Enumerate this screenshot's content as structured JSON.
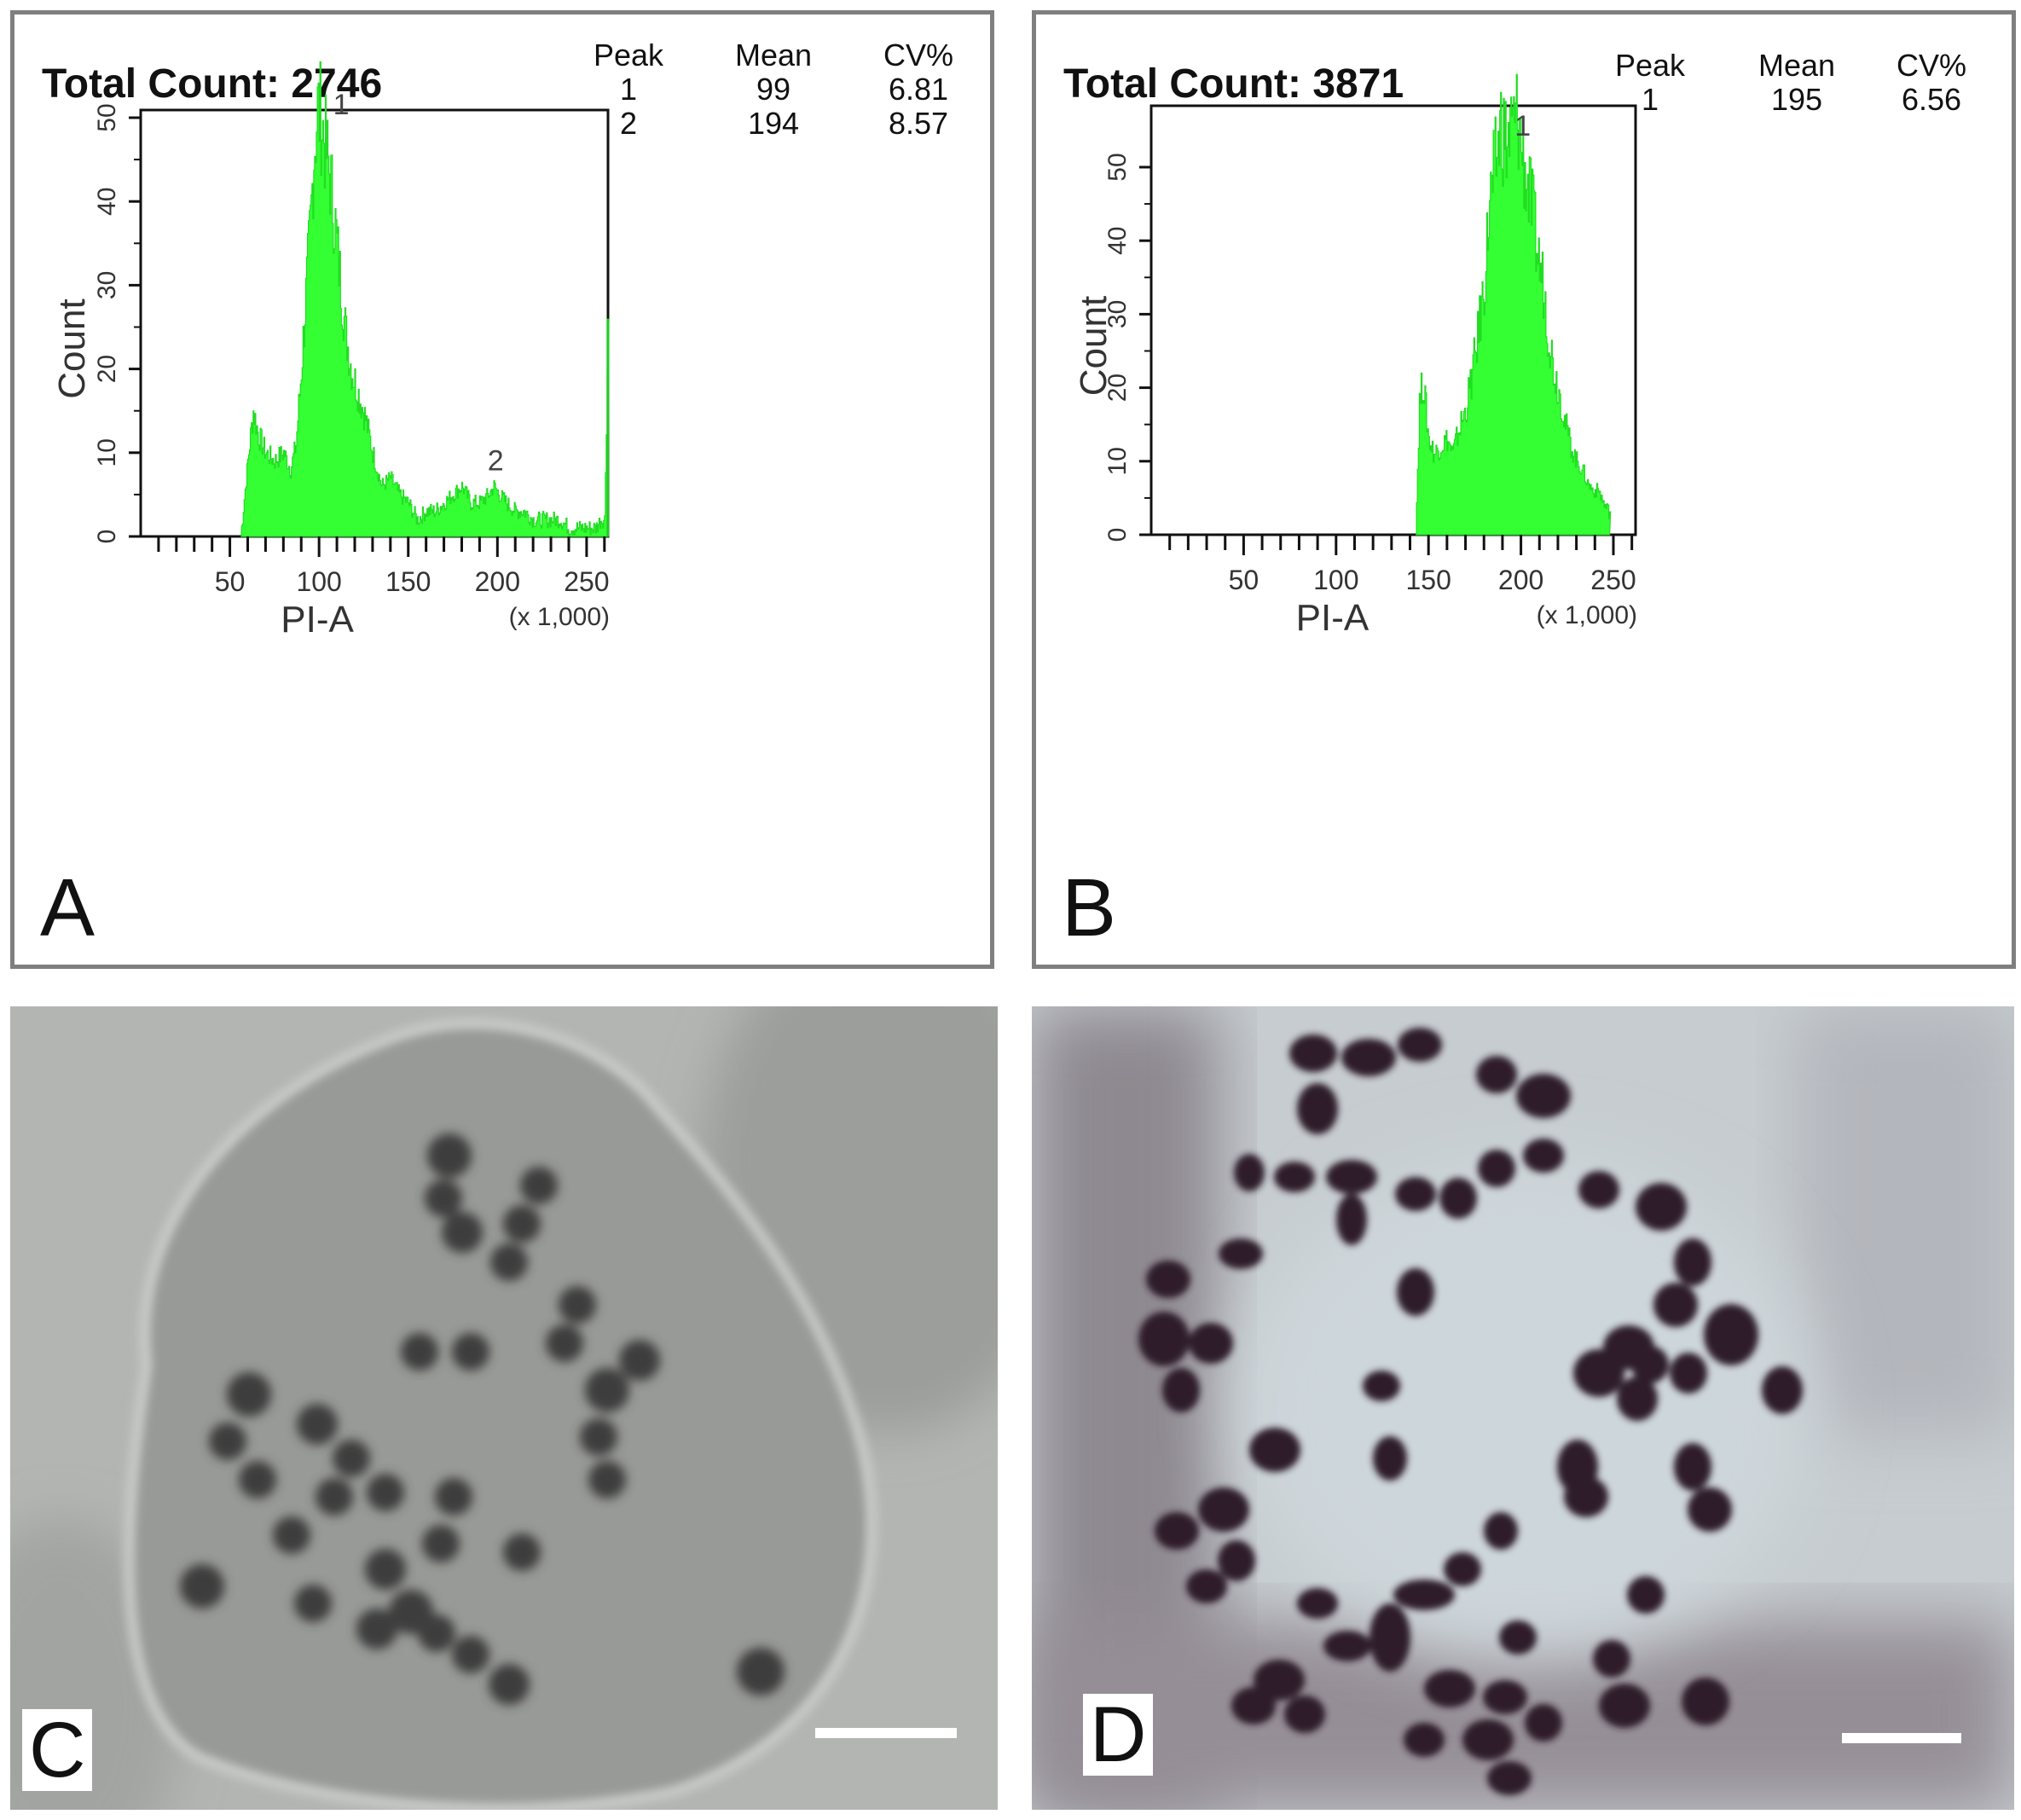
{
  "panels": [
    {
      "letter": "A",
      "total_count": "Total Count: 2746",
      "stats": {
        "headers": [
          "Peak",
          "Mean",
          "CV%"
        ],
        "rows": [
          [
            "1",
            "99",
            "6.81"
          ],
          [
            "2",
            "194",
            "8.57"
          ]
        ]
      },
      "ylabel": "Count",
      "xlabel": "PI-A",
      "x_unit": "(x 1,000)",
      "yticks": [
        "0",
        "10",
        "20",
        "30",
        "40",
        "50"
      ],
      "xticks": [
        "50",
        "100",
        "150",
        "200",
        "250"
      ],
      "peak_labels": [
        "1",
        "2"
      ]
    },
    {
      "letter": "B",
      "total_count": "Total Count: 3871",
      "stats": {
        "headers": [
          "Peak",
          "Mean",
          "CV%"
        ],
        "rows": [
          [
            "1",
            "195",
            "6.56"
          ]
        ]
      },
      "ylabel": "Count",
      "xlabel": "PI-A",
      "x_unit": "(x 1,000)",
      "yticks": [
        "0",
        "10",
        "20",
        "30",
        "40",
        "50"
      ],
      "xticks": [
        "50",
        "100",
        "150",
        "200",
        "250"
      ],
      "peak_labels": [
        "1"
      ]
    }
  ],
  "photos": [
    {
      "letter": "C"
    },
    {
      "letter": "D"
    }
  ],
  "colors": {
    "histogram_fill": "#33ff33",
    "frame": "#7f7f7f",
    "axis": "#111111"
  },
  "chart_data": [
    {
      "type": "area",
      "title": "",
      "xlabel": "PI-A (x 1,000)",
      "ylabel": "Count",
      "xlim": [
        0,
        262
      ],
      "ylim": [
        0,
        52
      ],
      "series": [
        {
          "x": [
            56,
            60,
            63,
            66,
            70,
            75,
            80,
            84,
            87,
            90,
            92,
            95,
            97,
            99,
            101,
            103,
            106,
            109,
            112,
            115,
            118,
            122,
            126,
            130,
            135,
            140,
            145,
            150,
            155,
            160,
            165,
            170,
            175,
            180,
            185,
            190,
            195,
            198,
            201,
            205,
            210,
            215,
            220,
            225,
            230,
            235,
            240,
            245,
            250,
            255,
            258,
            260,
            262
          ],
          "y": [
            0,
            9,
            15,
            12,
            10,
            9,
            10,
            8,
            11,
            20,
            27,
            37,
            46,
            51,
            50,
            47,
            43,
            37,
            30,
            24,
            20,
            17,
            14,
            10,
            6,
            7,
            5,
            4,
            2,
            3,
            3,
            4,
            5,
            6,
            4,
            4,
            5,
            6,
            5,
            4,
            3,
            3,
            2,
            2,
            2,
            2,
            1,
            1,
            1,
            1,
            2,
            2,
            26
          ]
        }
      ],
      "peaks": [
        {
          "label": "1",
          "x": 99
        },
        {
          "label": "2",
          "x": 199
        }
      ]
    },
    {
      "type": "area",
      "title": "",
      "xlabel": "PI-A (x 1,000)",
      "ylabel": "Count",
      "xlim": [
        0,
        262
      ],
      "ylim": [
        0,
        57
      ],
      "series": [
        {
          "x": [
            143,
            145,
            147,
            150,
            153,
            156,
            160,
            163,
            166,
            170,
            173,
            176,
            180,
            183,
            186,
            189,
            192,
            195,
            198,
            200,
            203,
            206,
            209,
            212,
            215,
            218,
            221,
            224,
            227,
            230,
            233,
            236,
            239,
            242,
            245,
            248
          ],
          "y": [
            0,
            18,
            21,
            13,
            11,
            12,
            13,
            11,
            14,
            17,
            21,
            26,
            34,
            45,
            50,
            56,
            53,
            55,
            57,
            53,
            48,
            44,
            38,
            34,
            27,
            22,
            19,
            15,
            12,
            10,
            9,
            7,
            6,
            6,
            4,
            3
          ]
        }
      ],
      "peaks": [
        {
          "label": "1",
          "x": 201
        }
      ]
    }
  ]
}
